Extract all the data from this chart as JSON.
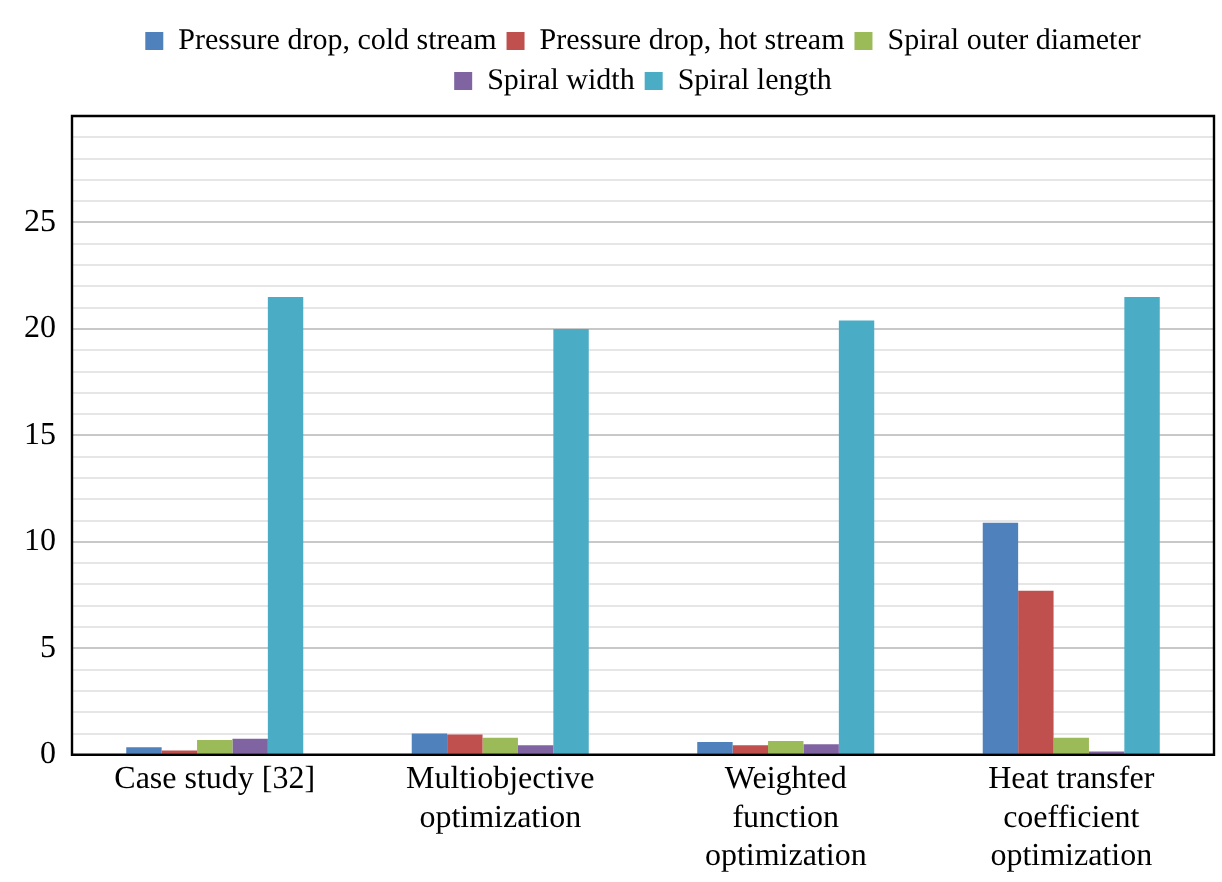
{
  "chart_data": {
    "type": "bar",
    "categories": [
      "Case study [32]",
      "Multiobjective optimization",
      "Weighted function optimization",
      "Heat transfer coefficient optimization"
    ],
    "series": [
      {
        "name": "Pressure drop, cold stream",
        "color": "#4f81bd",
        "values": [
          0.35,
          1.0,
          0.6,
          10.9
        ]
      },
      {
        "name": "Pressure drop, hot stream",
        "color": "#c0504d",
        "values": [
          0.2,
          0.95,
          0.45,
          7.7
        ]
      },
      {
        "name": "Spiral outer diameter",
        "color": "#9bbb59",
        "values": [
          0.7,
          0.8,
          0.65,
          0.8
        ]
      },
      {
        "name": "Spiral width",
        "color": "#8064a2",
        "values": [
          0.75,
          0.45,
          0.5,
          0.15
        ]
      },
      {
        "name": "Spiral length",
        "color": "#4bacc6",
        "values": [
          21.5,
          20.0,
          20.4,
          21.5
        ]
      }
    ],
    "ylim": [
      0,
      30
    ],
    "yticks": [
      0,
      {
        "value": 1,
        "label": null
      },
      {
        "value": 2,
        "label": null
      },
      {
        "value": 3,
        "label": null
      },
      {
        "value": 4,
        "label": null
      },
      5,
      {
        "value": 6,
        "label": null
      },
      {
        "value": 7,
        "label": null
      },
      {
        "value": 8,
        "label": null
      },
      {
        "value": 9,
        "label": null
      },
      10,
      {
        "value": 11,
        "label": null
      },
      {
        "value": 12,
        "label": null
      },
      {
        "value": 13,
        "label": null
      },
      {
        "value": 14,
        "label": null
      },
      15,
      {
        "value": 16,
        "label": null
      },
      {
        "value": 17,
        "label": null
      },
      {
        "value": 18,
        "label": null
      },
      {
        "value": 19,
        "label": null
      },
      20,
      {
        "value": 21,
        "label": null
      },
      {
        "value": 22,
        "label": null
      },
      {
        "value": 23,
        "label": null
      },
      {
        "value": 24,
        "label": null
      },
      25,
      {
        "value": 26,
        "label": null
      },
      {
        "value": 27,
        "label": null
      },
      {
        "value": 28,
        "label": null
      },
      {
        "value": 29,
        "label": null
      },
      {
        "value": 30,
        "label": null
      }
    ],
    "grid": "y",
    "legend": "top"
  }
}
